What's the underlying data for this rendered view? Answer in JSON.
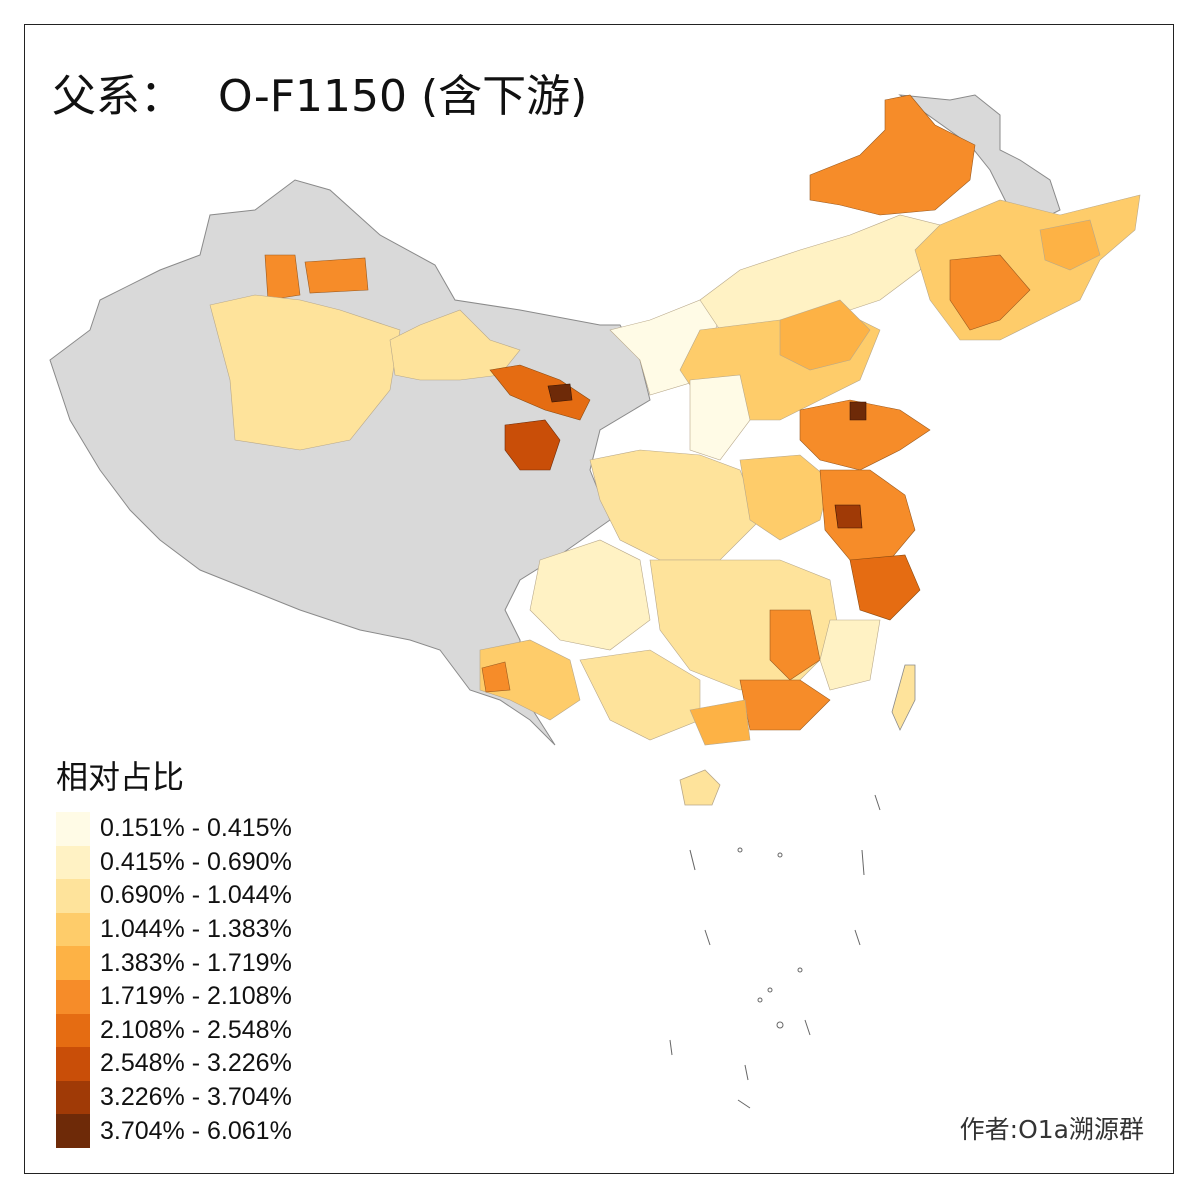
{
  "title": {
    "label": "父系：",
    "haplogroup": "O-F1150 (含下游)"
  },
  "legend": {
    "title": "相对占比",
    "bins": [
      {
        "range": "0.151% - 0.415%",
        "color": "#fffbe6"
      },
      {
        "range": "0.415% - 0.690%",
        "color": "#fff2c4"
      },
      {
        "range": "0.690% - 1.044%",
        "color": "#fee39b"
      },
      {
        "range": "1.044% - 1.383%",
        "color": "#fecc6a"
      },
      {
        "range": "1.383% - 1.719%",
        "color": "#fdb245"
      },
      {
        "range": "1.719% - 2.108%",
        "color": "#f68c29"
      },
      {
        "range": "2.108% - 2.548%",
        "color": "#e56c12"
      },
      {
        "range": "2.548% - 3.226%",
        "color": "#c94e08"
      },
      {
        "range": "3.226% - 3.704%",
        "color": "#a03a06"
      },
      {
        "range": "3.704% - 6.061%",
        "color": "#6e2a08"
      }
    ]
  },
  "no_data_color": "#d9d9d9",
  "credit": "作者:O1a溯源群"
}
